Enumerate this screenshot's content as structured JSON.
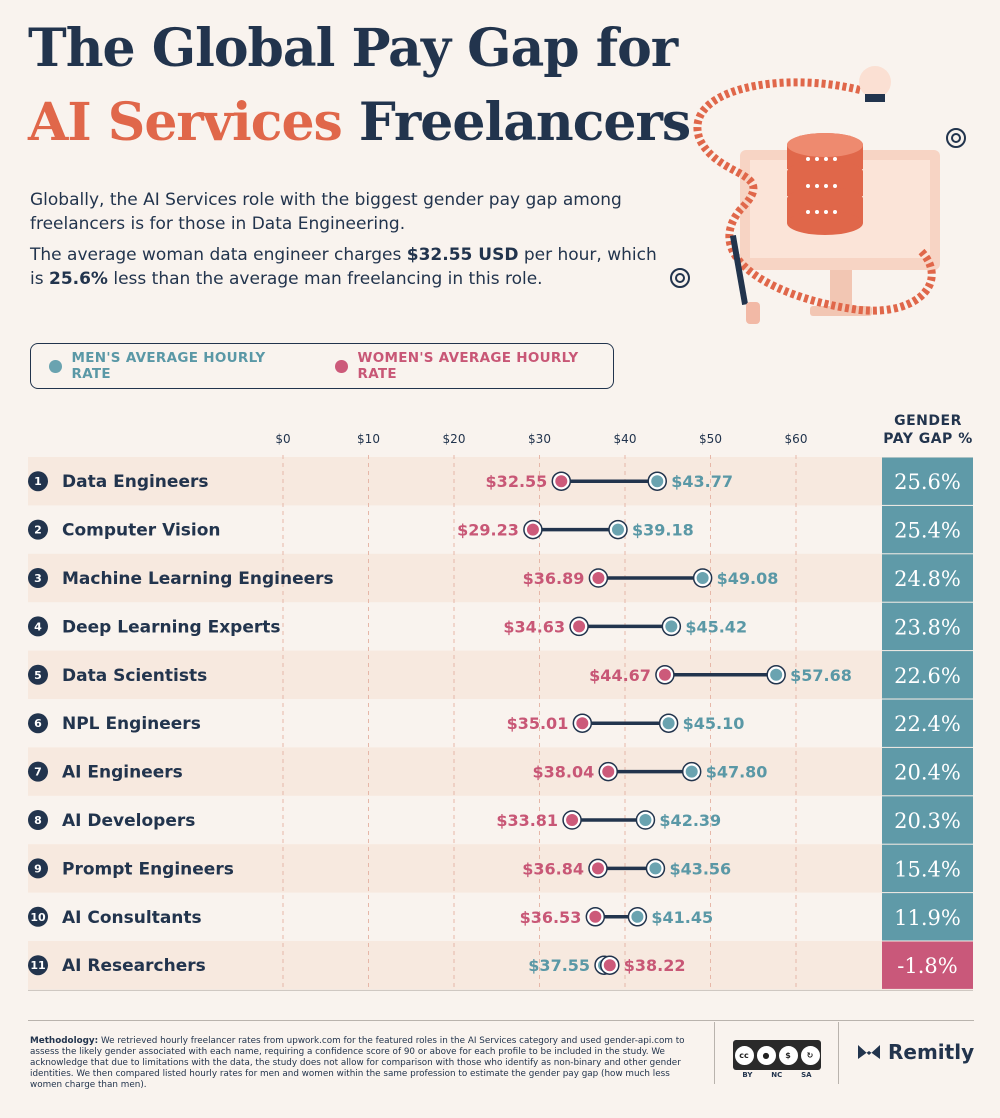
{
  "header": {
    "title_line1": "The Global Pay Gap for",
    "title_line2_accent": "AI Services",
    "title_line2_rest": "Freelancers",
    "intro1": "Globally, the AI Services role with the biggest gender pay gap among freelancers is for those in Data Engineering.",
    "intro2_pre": "The average woman data engineer charges ",
    "intro2_bold1": "$32.55 USD",
    "intro2_mid": " per hour, which is ",
    "intro2_bold2": "25.6%",
    "intro2_post": " less than the average man freelancing in this role."
  },
  "legend": {
    "men": "MEN'S AVERAGE HOURLY RATE",
    "women": "WOMEN'S AVERAGE HOURLY RATE"
  },
  "gap_header": [
    "GENDER",
    "PAY GAP %"
  ],
  "colors": {
    "men": "#6aa3b0",
    "women": "#cc5a7a",
    "title_accent": "#e0674a",
    "navy": "#22344d",
    "row_band": "#f7e9df",
    "gap_positive": "#5f9aa8",
    "gap_negative": "#c9587a"
  },
  "chart_data": {
    "type": "dumbbell",
    "x_ticks": [
      "$0",
      "$10",
      "$20",
      "$30",
      "$40",
      "$50",
      "$60"
    ],
    "xlim": [
      0,
      60
    ],
    "series": [
      {
        "name": "MEN'S AVERAGE HOURLY RATE"
      },
      {
        "name": "WOMEN'S AVERAGE HOURLY RATE"
      }
    ],
    "rows": [
      {
        "rank": "1",
        "label": "Data Engineers",
        "women": 32.55,
        "men": 43.77,
        "women_label": "$32.55",
        "men_label": "$43.77",
        "gap": "25.6%"
      },
      {
        "rank": "2",
        "label": "Computer Vision",
        "women": 29.23,
        "men": 39.18,
        "women_label": "$29.23",
        "men_label": "$39.18",
        "gap": "25.4%"
      },
      {
        "rank": "3",
        "label": "Machine Learning Engineers",
        "women": 36.89,
        "men": 49.08,
        "women_label": "$36.89",
        "men_label": "$49.08",
        "gap": "24.8%"
      },
      {
        "rank": "4",
        "label": "Deep Learning Experts",
        "women": 34.63,
        "men": 45.42,
        "women_label": "$34.63",
        "men_label": "$45.42",
        "gap": "23.8%"
      },
      {
        "rank": "5",
        "label": "Data Scientists",
        "women": 44.67,
        "men": 57.68,
        "women_label": "$44.67",
        "men_label": "$57.68",
        "gap": "22.6%"
      },
      {
        "rank": "6",
        "label": "NPL Engineers",
        "women": 35.01,
        "men": 45.1,
        "women_label": "$35.01",
        "men_label": "$45.10",
        "gap": "22.4%"
      },
      {
        "rank": "7",
        "label": "AI Engineers",
        "women": 38.04,
        "men": 47.8,
        "women_label": "$38.04",
        "men_label": "$47.80",
        "gap": "20.4%"
      },
      {
        "rank": "8",
        "label": "AI Developers",
        "women": 33.81,
        "men": 42.39,
        "women_label": "$33.81",
        "men_label": "$42.39",
        "gap": "20.3%"
      },
      {
        "rank": "9",
        "label": "Prompt Engineers",
        "women": 36.84,
        "men": 43.56,
        "women_label": "$36.84",
        "men_label": "$43.56",
        "gap": "15.4%"
      },
      {
        "rank": "10",
        "label": "AI Consultants",
        "women": 36.53,
        "men": 41.45,
        "women_label": "$36.53",
        "men_label": "$41.45",
        "gap": "11.9%"
      },
      {
        "rank": "11",
        "label": "AI Researchers",
        "women": 38.22,
        "men": 37.55,
        "women_label": "$38.22",
        "men_label": "$37.55",
        "gap": "-1.8%"
      }
    ]
  },
  "footer": {
    "methodology_label": "Methodology:",
    "methodology_text": " We retrieved hourly freelancer rates from upwork.com for the featured roles in the AI Services category and used gender-api.com to assess the likely gender associated with each name, requiring a confidence score of 90 or above for each profile to be included in the study. We acknowledge that due to limitations with the data, the study does not allow for comparison with those who identify as non-binary and other gender identities. We then compared listed hourly rates for men and women within the same profession to estimate the gender pay gap (how much less women charge than men).",
    "license_labels": [
      "BY",
      "NC",
      "SA"
    ],
    "license_badge": "cc",
    "brand": "Remitly"
  }
}
